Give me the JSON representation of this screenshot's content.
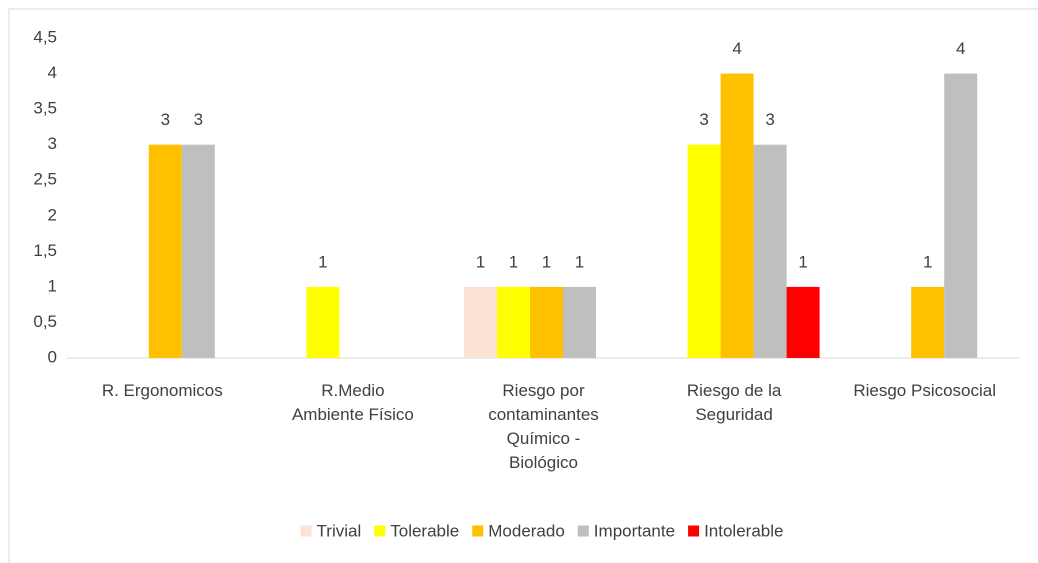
{
  "chart_data": {
    "type": "bar",
    "categories": [
      "R. Ergonomicos",
      "R.Medio\nAmbiente Físico",
      "Riesgo por\ncontaminantes\nQuímico -\nBiológico",
      "Riesgo de la\nSeguridad",
      "Riesgo Psicosocial"
    ],
    "series": [
      {
        "name": "Trivial",
        "color": "#fbe2d5",
        "values": [
          null,
          null,
          1,
          null,
          null
        ]
      },
      {
        "name": "Tolerable",
        "color": "#ffff00",
        "values": [
          null,
          1,
          1,
          3,
          null
        ]
      },
      {
        "name": "Moderado",
        "color": "#ffc000",
        "values": [
          3,
          null,
          1,
          4,
          1
        ]
      },
      {
        "name": "Importante",
        "color": "#bfbfbf",
        "values": [
          3,
          null,
          1,
          3,
          4
        ]
      },
      {
        "name": "Intolerable",
        "color": "#ff0000",
        "values": [
          null,
          null,
          null,
          1,
          null
        ]
      }
    ],
    "ylim": [
      0,
      4.5
    ],
    "yticks": [
      0,
      {
        "value": 0.5,
        "label": "0,5"
      },
      1,
      {
        "value": 1.5,
        "label": "1,5"
      },
      2,
      {
        "value": 2.5,
        "label": "2,5"
      },
      3,
      {
        "value": 3.5,
        "label": "3,5"
      },
      4,
      {
        "value": 4.5,
        "label": "4,5"
      }
    ],
    "grid": false,
    "legend": "bottom"
  }
}
